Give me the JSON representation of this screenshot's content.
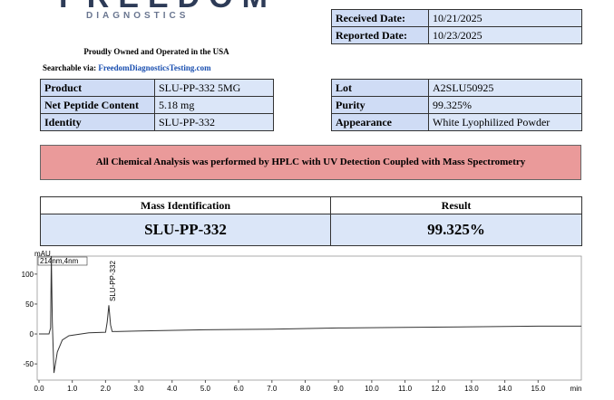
{
  "header": {
    "logo": "FREEDOM",
    "logo_sub": "DIAGNOSTICS",
    "tagline": "Proudly Owned and Operated in the USA",
    "searchable_label": "Searchable via:",
    "searchable_link": "FreedomDiagnosticsTesting.com"
  },
  "dates": {
    "rows": [
      [
        "Received Date:",
        "10/21/2025"
      ],
      [
        "Reported Date:",
        "10/23/2025"
      ]
    ]
  },
  "product_table": {
    "rows": [
      [
        "Product",
        "SLU-PP-332 5MG"
      ],
      [
        "Net Peptide Content",
        "5.18 mg"
      ],
      [
        "Identity",
        "SLU-PP-332"
      ]
    ]
  },
  "lot_table": {
    "rows": [
      [
        "Lot",
        "A2SLU50925"
      ],
      [
        "Purity",
        "99.325%"
      ],
      [
        "Appearance",
        "White Lyophilized Powder"
      ]
    ]
  },
  "banner": "All Chemical Analysis was performed by HPLC with UV Detection Coupled with Mass Spectrometry",
  "mass_table": {
    "headers": [
      "Mass Identification",
      "Result"
    ],
    "values": [
      "SLU-PP-332",
      "99.325%"
    ]
  },
  "chart_data": {
    "type": "line",
    "y_label": "mAU",
    "x_unit": "min",
    "annotation": "214nm,4nm",
    "peak_label": "SLU-PP-332",
    "color": "#333333",
    "x": [
      0,
      0.3,
      0.35,
      0.37,
      0.4,
      0.45,
      0.55,
      0.7,
      0.9,
      1.5,
      2.0,
      2.05,
      2.1,
      2.15,
      2.2,
      3,
      5,
      7,
      9,
      11,
      13,
      15,
      16.3
    ],
    "values": [
      0,
      0,
      10,
      130,
      20,
      -65,
      -30,
      -10,
      -3,
      2,
      3,
      20,
      48,
      15,
      4,
      5,
      7,
      8,
      10,
      11,
      12,
      13,
      13
    ],
    "xlim": [
      0,
      16.3
    ],
    "ylim": [
      -77,
      130
    ],
    "xticks": [
      {
        "value": 0,
        "label": "0.0"
      },
      {
        "value": 1,
        "label": "1.0"
      },
      {
        "value": 2,
        "label": "2.0"
      },
      {
        "value": 3,
        "label": "3.0"
      },
      {
        "value": 4,
        "label": "4.0"
      },
      {
        "value": 5,
        "label": "5.0"
      },
      {
        "value": 6,
        "label": "6.0"
      },
      {
        "value": 7,
        "label": "7.0"
      },
      {
        "value": 8,
        "label": "8.0"
      },
      {
        "value": 9,
        "label": "9.0"
      },
      {
        "value": 10,
        "label": "10.0"
      },
      {
        "value": 11,
        "label": "11.0"
      },
      {
        "value": 12,
        "label": "12.0"
      },
      {
        "value": 13,
        "label": "13.0"
      },
      {
        "value": 14,
        "label": "14.0"
      },
      {
        "value": 15,
        "label": "15.0"
      }
    ],
    "yticks": [
      100,
      50,
      0,
      -50
    ]
  }
}
